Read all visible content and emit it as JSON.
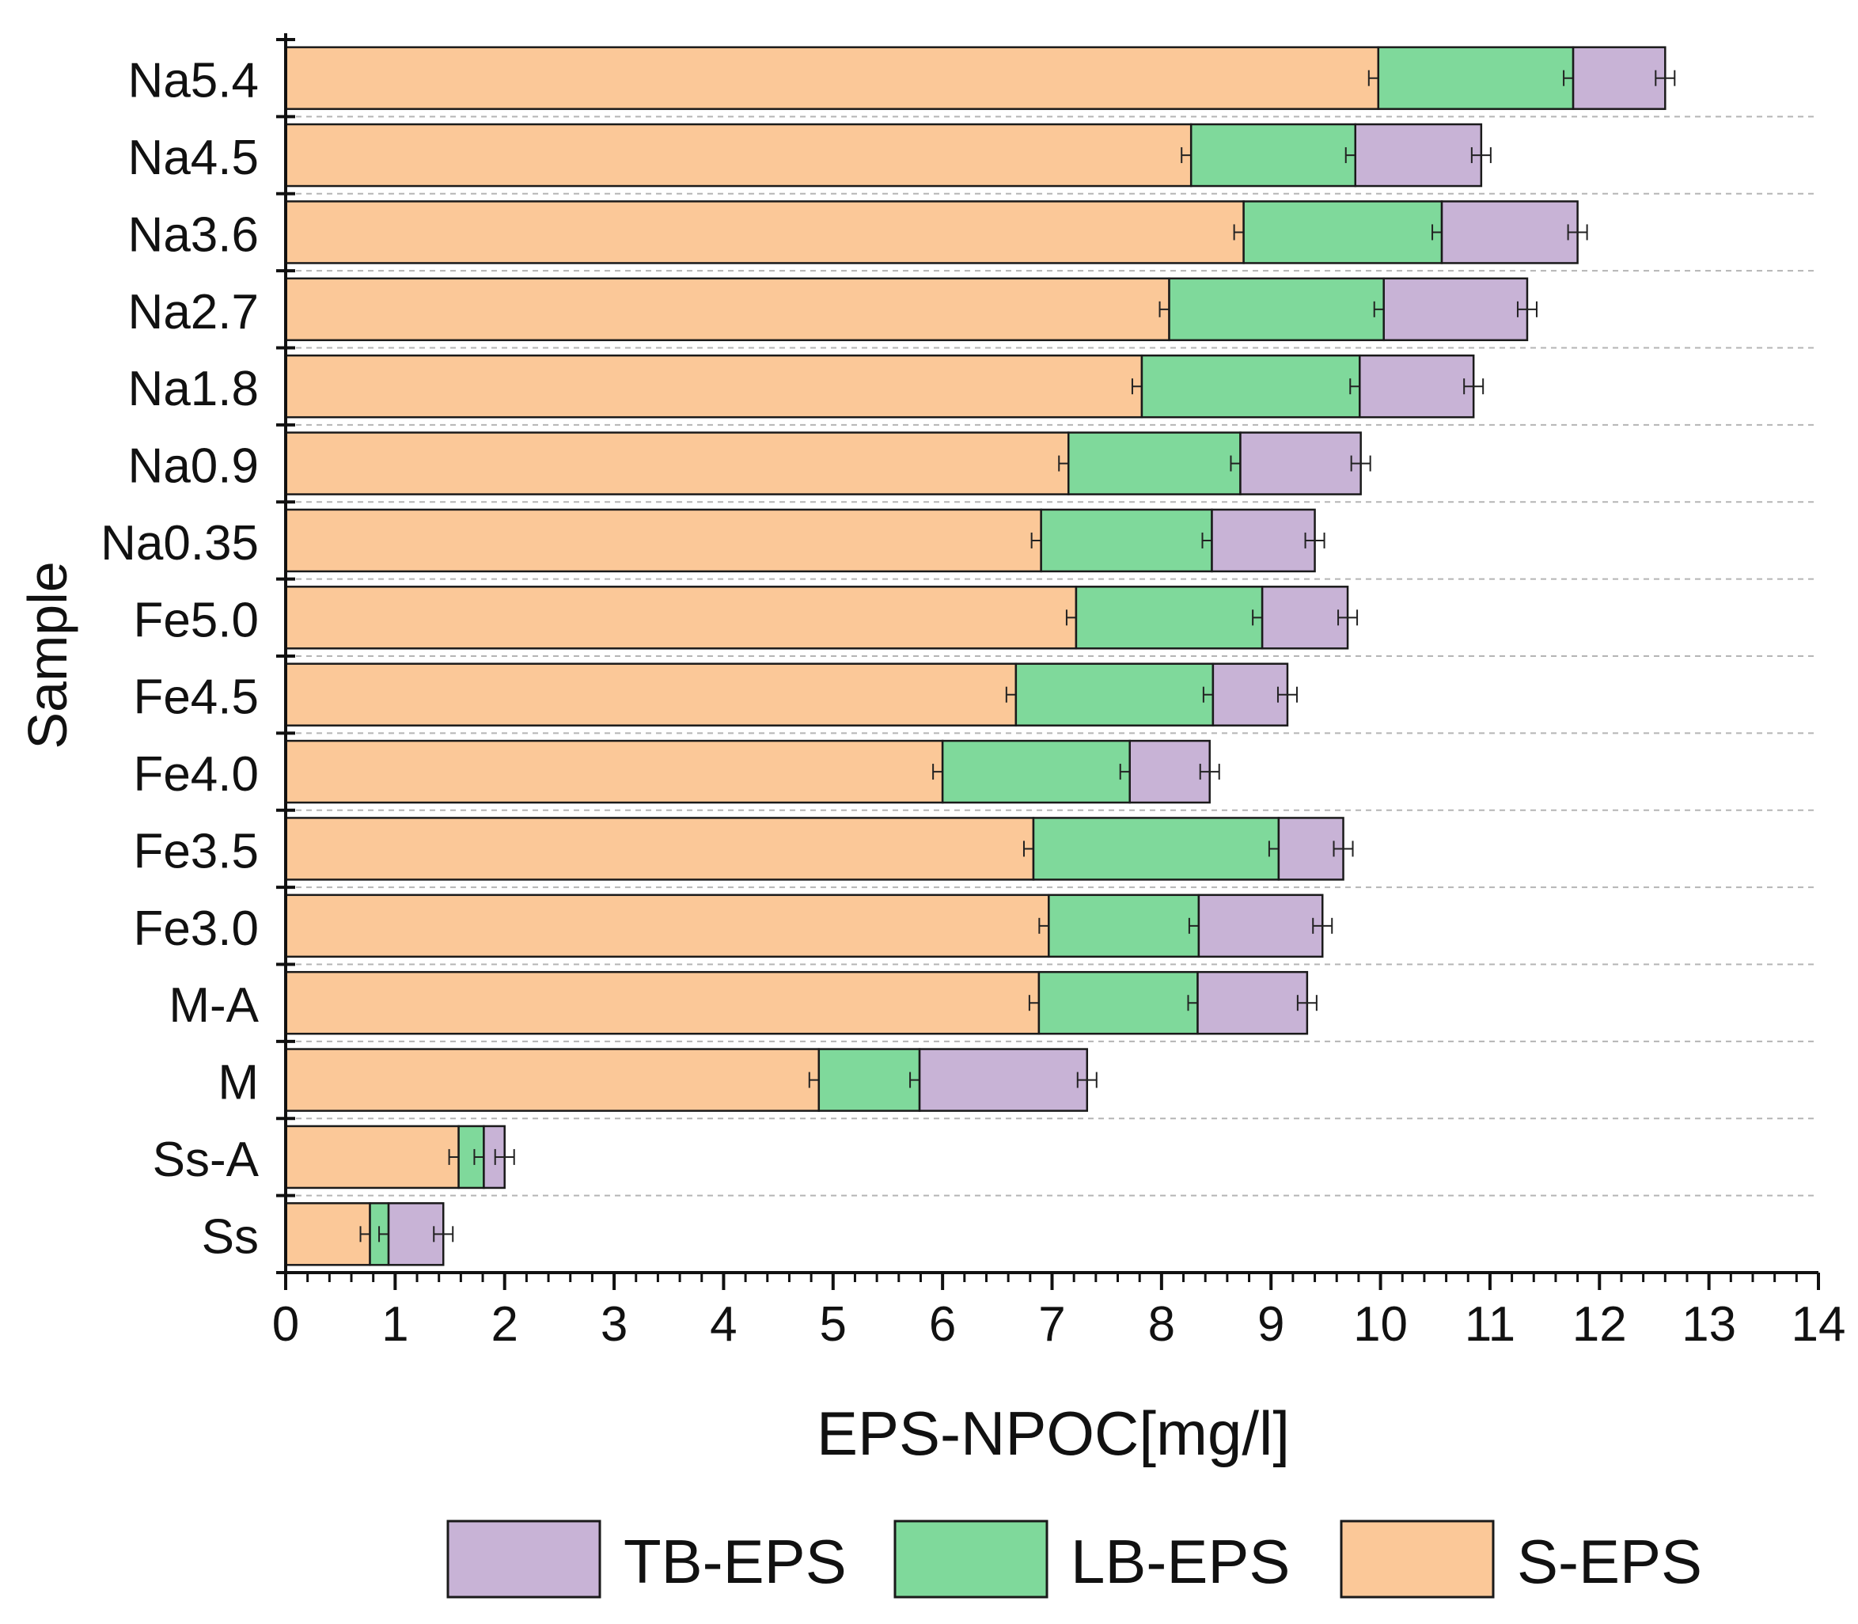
{
  "chart_data": {
    "type": "bar",
    "orientation": "horizontal",
    "stacked": true,
    "title": "",
    "xlabel": "EPS-NPOC[mg/l]",
    "ylabel": "Sample",
    "xlim": [
      0,
      14
    ],
    "xticks": [
      "0",
      "1",
      "2",
      "3",
      "4",
      "5",
      "6",
      "7",
      "8",
      "9",
      "10",
      "11",
      "12",
      "13",
      "14"
    ],
    "categories": [
      "Na5.4",
      "Na4.5",
      "Na3.6",
      "Na2.7",
      "Na1.8",
      "Na0.9",
      "Na0.35",
      "Fe5.0",
      "Fe4.5",
      "Fe4.0",
      "Fe3.5",
      "Fe3.0",
      "M-A",
      "M",
      "Ss-A",
      "Ss"
    ],
    "series": [
      {
        "name": "S-EPS",
        "color": "#fbc898",
        "values": [
          9.98,
          8.27,
          8.75,
          8.07,
          7.82,
          7.15,
          6.9,
          7.22,
          6.67,
          6.0,
          6.83,
          6.97,
          6.88,
          4.87,
          1.58,
          0.77
        ]
      },
      {
        "name": "LB-EPS",
        "color": "#7fd99b",
        "values": [
          1.78,
          1.5,
          1.81,
          1.96,
          1.99,
          1.57,
          1.56,
          1.7,
          1.8,
          1.71,
          2.24,
          1.37,
          1.45,
          0.92,
          0.23,
          0.17
        ]
      },
      {
        "name": "TB-EPS",
        "color": "#c8b3d6",
        "values": [
          0.84,
          1.15,
          1.24,
          1.31,
          1.04,
          1.1,
          0.94,
          0.78,
          0.68,
          0.73,
          0.59,
          1.13,
          1.0,
          1.53,
          0.19,
          0.5
        ]
      }
    ],
    "legend": {
      "position": "bottom",
      "entries": [
        "TB-EPS",
        "LB-EPS",
        "S-EPS"
      ]
    },
    "grid": {
      "horizontal": "dashed",
      "vertical": false
    },
    "error_bars": true
  }
}
